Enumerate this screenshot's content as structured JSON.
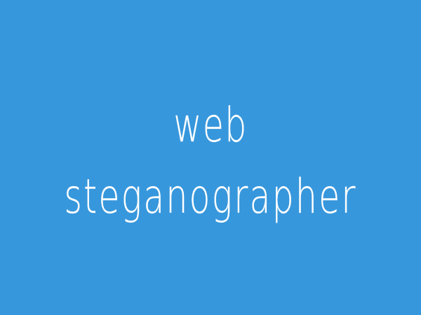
{
  "page": {
    "background_color": "#3797dc",
    "text_color": "#ffffff"
  },
  "title": {
    "line1": "web",
    "line2": "steganographer"
  }
}
